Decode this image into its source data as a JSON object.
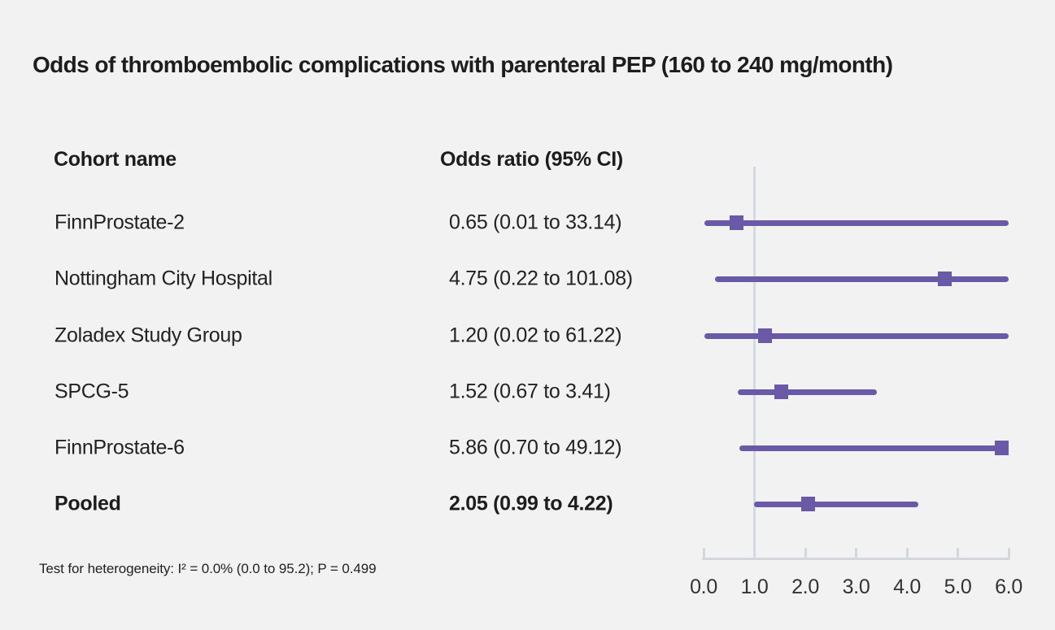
{
  "title": "Odds of thromboembolic complications with parenteral PEP (160 to 240 mg/month)",
  "columns": {
    "cohort": "Cohort name",
    "odds": "Odds ratio (95% CI)"
  },
  "footnote": "Test for heterogeneity: I² = 0.0% (0.0 to 95.2); P = 0.499",
  "colors": {
    "accent": "#6a59a6",
    "reference_line": "#d5d9e1",
    "axis": "#d2d7de",
    "background": "#f2f2f2",
    "title_text": "#1d1d1d",
    "body_text": "#222222",
    "tick_text": "#333333"
  },
  "chart_data": {
    "type": "scatter",
    "variant": "forest-plot",
    "title": "Odds of thromboembolic complications with parenteral PEP (160 to 240 mg/month)",
    "xlabel": "",
    "ylabel": "",
    "xlim": [
      0,
      6
    ],
    "reference_line_x": 1.0,
    "grid": false,
    "ticks": [
      0,
      1,
      2,
      3,
      4,
      5,
      6
    ],
    "tick_labels": [
      "0.0",
      "1.0",
      "2.0",
      "3.0",
      "4.0",
      "5.0",
      "6.0"
    ],
    "rows": [
      {
        "name": "FinnProstate-2",
        "estimate": 0.65,
        "ci_low": 0.01,
        "ci_high": 33.14,
        "label": "0.65 (0.01 to 33.14)",
        "bold": false
      },
      {
        "name": "Nottingham City Hospital",
        "estimate": 4.75,
        "ci_low": 0.22,
        "ci_high": 101.08,
        "label": "4.75 (0.22 to 101.08)",
        "bold": false
      },
      {
        "name": "Zoladex Study Group",
        "estimate": 1.2,
        "ci_low": 0.02,
        "ci_high": 61.22,
        "label": "1.20 (0.02 to 61.22)",
        "bold": false
      },
      {
        "name": "SPCG-5",
        "estimate": 1.52,
        "ci_low": 0.67,
        "ci_high": 3.41,
        "label": "1.52 (0.67 to 3.41)",
        "bold": false
      },
      {
        "name": "FinnProstate-6",
        "estimate": 5.86,
        "ci_low": 0.7,
        "ci_high": 49.12,
        "label": "5.86 (0.70 to 49.12)",
        "bold": false
      },
      {
        "name": "Pooled",
        "estimate": 2.05,
        "ci_low": 0.99,
        "ci_high": 4.22,
        "label": "2.05 (0.99 to 4.22)",
        "bold": true
      }
    ]
  }
}
